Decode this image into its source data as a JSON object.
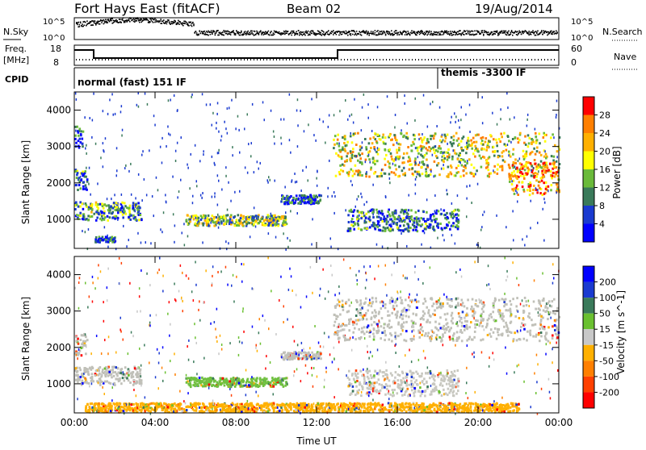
{
  "header": {
    "title": "Fort Hays East (fitACF)",
    "beam": "Beam 02",
    "date": "19/Aug/2014"
  },
  "top_panels": {
    "nsky_label": "N.Sky",
    "nsky_ticks": [
      "10^5",
      "10^0"
    ],
    "nsearch_label": "N.Search",
    "nsearch_ticks": [
      "10^5",
      "10^0"
    ],
    "freq_label": "Freq.",
    "freq_unit": "[MHz]",
    "freq_ticks": [
      "18",
      "8"
    ],
    "nave_label": "Nave",
    "nave_ticks": [
      "60",
      "0"
    ],
    "cpid_label": "CPID",
    "cpid_segments": [
      {
        "text": "normal (fast) 151 IF",
        "start_hour": 0
      },
      {
        "text": "themis -3300 IF",
        "start_hour": 18
      }
    ]
  },
  "chart_data": [
    {
      "type": "heatmap",
      "name": "power",
      "ylabel": "Slant Range [km]",
      "xlabel": "Time UT",
      "xlim_hours": [
        0,
        24
      ],
      "x_ticks": [
        "00:00",
        "04:00",
        "08:00",
        "12:00",
        "16:00",
        "20:00",
        "00:00"
      ],
      "ylim": [
        200,
        4500
      ],
      "y_ticks": [
        1000,
        2000,
        3000,
        4000
      ],
      "colorbar_label": "Power [dB]",
      "colorbar_ticks": [
        "28",
        "24",
        "20",
        "16",
        "12",
        "8",
        "4"
      ],
      "colorbar_colors": [
        "#ff0000",
        "#ff7f00",
        "#ffb000",
        "#ffff00",
        "#6aba3a",
        "#3a7a5a",
        "#1a3ad0",
        "#0000ff"
      ],
      "regions": [
        {
          "t0": 0.0,
          "t1": 3.3,
          "r0": 1000,
          "r1": 1500,
          "level": 0.35
        },
        {
          "t0": 0.0,
          "t1": 0.6,
          "r0": 1800,
          "r1": 2400,
          "level": 0.25
        },
        {
          "t0": 0.0,
          "t1": 0.4,
          "r0": 3000,
          "r1": 3600,
          "level": 0.15
        },
        {
          "t0": 1.0,
          "t1": 2.0,
          "r0": 400,
          "r1": 550,
          "level": 0.2
        },
        {
          "t0": 5.5,
          "t1": 10.5,
          "r0": 850,
          "r1": 1150,
          "level": 0.45
        },
        {
          "t0": 10.2,
          "t1": 12.2,
          "r0": 1450,
          "r1": 1700,
          "level": 0.2
        },
        {
          "t0": 12.8,
          "t1": 24.0,
          "r0": 2200,
          "r1": 3400,
          "level": 0.55
        },
        {
          "t0": 13.5,
          "t1": 19.0,
          "r0": 700,
          "r1": 1300,
          "level": 0.25
        },
        {
          "t0": 21.5,
          "t1": 24.0,
          "r0": 1700,
          "r1": 2600,
          "level": 0.75
        }
      ]
    },
    {
      "type": "heatmap",
      "name": "velocity",
      "ylabel": "Slant Range [km]",
      "xlabel": "Time UT",
      "xlim_hours": [
        0,
        24
      ],
      "x_ticks": [
        "00:00",
        "04:00",
        "08:00",
        "12:00",
        "16:00",
        "20:00",
        "00:00"
      ],
      "ylim": [
        200,
        4500
      ],
      "y_ticks": [
        1000,
        2000,
        3000,
        4000
      ],
      "colorbar_label": "Velocity [m s^-1]",
      "colorbar_ticks": [
        "200",
        "100",
        "50",
        "15",
        "-15",
        "-50",
        "-100",
        "-200"
      ],
      "colorbar_colors": [
        "#0000ff",
        "#1a3ad0",
        "#3a7a5a",
        "#6ac030",
        "#c8c8c8",
        "#ffb000",
        "#ff7f00",
        "#ff4000",
        "#ff0000"
      ],
      "regions": [
        {
          "t0": 0.0,
          "t1": 3.3,
          "r0": 1000,
          "r1": 1500,
          "color": "#c0c0b8"
        },
        {
          "t0": 0.0,
          "t1": 0.6,
          "r0": 1800,
          "r1": 2400,
          "color": "#c0c0b8"
        },
        {
          "t0": 5.5,
          "t1": 10.5,
          "r0": 950,
          "r1": 1200,
          "color": "#70c040"
        },
        {
          "t0": 10.2,
          "t1": 12.2,
          "r0": 1700,
          "r1": 1900,
          "color": "#c0c0b8"
        },
        {
          "t0": 12.8,
          "t1": 24.0,
          "r0": 2200,
          "r1": 3400,
          "color": "#c0c0b8"
        },
        {
          "t0": 13.5,
          "t1": 19.0,
          "r0": 700,
          "r1": 1400,
          "color": "#c8c8c0"
        },
        {
          "t0": 0.5,
          "t1": 22.0,
          "r0": 250,
          "r1": 500,
          "color": "#ffb000"
        }
      ]
    }
  ]
}
